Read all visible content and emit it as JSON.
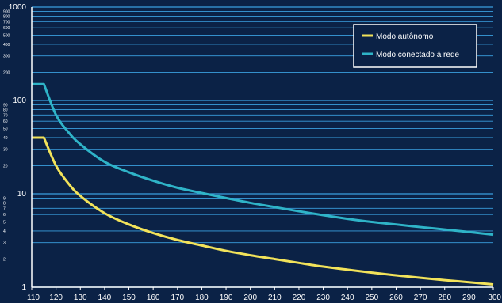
{
  "chart_data": {
    "type": "line",
    "title": "",
    "xlabel": "",
    "ylabel": "",
    "x_scale": "linear",
    "y_scale": "log",
    "xlim": [
      110,
      300
    ],
    "ylim": [
      1,
      1000
    ],
    "grid": true,
    "legend_position": "top-right",
    "x_ticks": [
      "110",
      "120",
      "130",
      "140",
      "150",
      "160",
      "170",
      "180",
      "190",
      "200",
      "210",
      "220",
      "230",
      "240",
      "250",
      "260",
      "270",
      "280",
      "290",
      "300"
    ],
    "y_major_ticks": [
      "1",
      "10",
      "100",
      "1000"
    ],
    "y_minor_ticks": [
      "2",
      "3",
      "4",
      "5",
      "6",
      "7",
      "8",
      "9",
      "20",
      "30",
      "40",
      "50",
      "60",
      "70",
      "80",
      "90",
      "200",
      "300",
      "400",
      "500",
      "600",
      "700",
      "800",
      "900"
    ],
    "colors": {
      "background": "#0b2246",
      "grid": "#3aa0e0",
      "axis": "#ffffff"
    },
    "series": [
      {
        "name": "Modo autônomo",
        "color": "#f2e35a",
        "x": [
          110,
          115,
          120,
          125,
          130,
          140,
          150,
          160,
          170,
          180,
          190,
          200,
          210,
          220,
          230,
          240,
          250,
          260,
          270,
          280,
          290,
          300
        ],
        "y": [
          40,
          40,
          20,
          13,
          9.5,
          6.2,
          4.7,
          3.8,
          3.2,
          2.8,
          2.45,
          2.2,
          2.0,
          1.82,
          1.66,
          1.54,
          1.43,
          1.34,
          1.26,
          1.19,
          1.13,
          1.07
        ]
      },
      {
        "name": "Modo conectado à rede",
        "color": "#2fb4c8",
        "x": [
          110,
          115,
          120,
          125,
          130,
          140,
          150,
          160,
          170,
          180,
          190,
          200,
          210,
          220,
          230,
          240,
          250,
          260,
          270,
          280,
          290,
          300
        ],
        "y": [
          150,
          150,
          70,
          46,
          34,
          22,
          17,
          13.8,
          11.6,
          10.2,
          9.0,
          8.0,
          7.2,
          6.5,
          5.9,
          5.4,
          5.0,
          4.7,
          4.4,
          4.15,
          3.9,
          3.65
        ]
      }
    ]
  }
}
